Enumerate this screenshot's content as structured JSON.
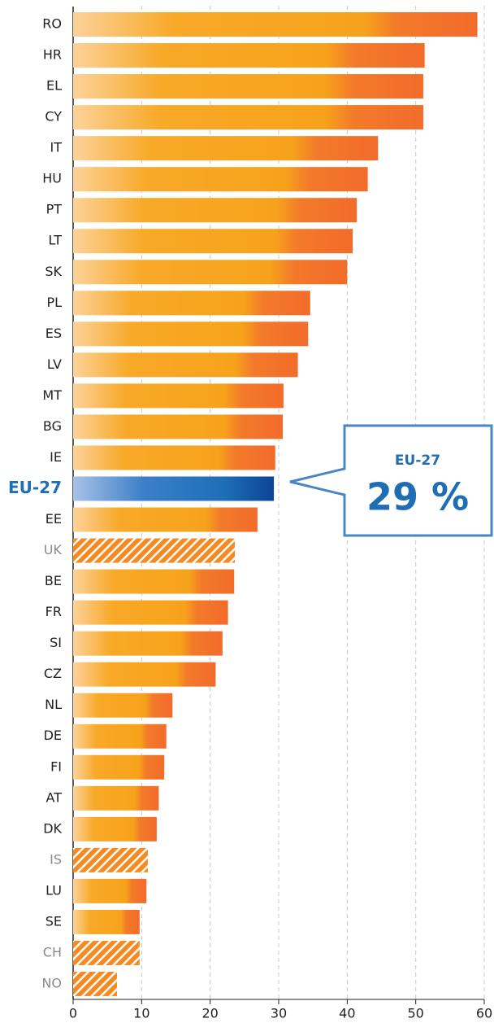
{
  "chart_data": {
    "type": "bar",
    "orientation": "horizontal",
    "categories": [
      "RO",
      "HR",
      "EL",
      "CY",
      "IT",
      "HU",
      "PT",
      "LT",
      "SK",
      "PL",
      "ES",
      "LV",
      "MT",
      "BG",
      "IE",
      "EU-27",
      "EE",
      "UK",
      "BE",
      "FR",
      "SI",
      "CZ",
      "NL",
      "DE",
      "FI",
      "AT",
      "DK",
      "IS",
      "LU",
      "SE",
      "CH",
      "NO"
    ],
    "values": [
      59,
      51.3,
      51.1,
      51.1,
      44.5,
      43,
      41.4,
      40.8,
      40,
      34.6,
      34.3,
      32.8,
      30.7,
      30.6,
      29.5,
      29.3,
      26.9,
      23.6,
      23.5,
      22.6,
      21.8,
      20.8,
      14.5,
      13.6,
      13.3,
      12.5,
      12.2,
      10.9,
      10.7,
      9.7,
      9.7,
      6.4
    ],
    "styles": [
      "solid",
      "solid",
      "solid",
      "solid",
      "solid",
      "solid",
      "solid",
      "solid",
      "solid",
      "solid",
      "solid",
      "solid",
      "solid",
      "solid",
      "solid",
      "highlight",
      "solid",
      "hatched",
      "solid",
      "solid",
      "solid",
      "solid",
      "solid",
      "solid",
      "solid",
      "solid",
      "solid",
      "hatched",
      "solid",
      "solid",
      "hatched",
      "hatched"
    ],
    "color": "#f7a21b",
    "highlight_color": "#1d6fb8",
    "callout": {
      "title": "EU-27",
      "text": "29 %"
    },
    "xlim": [
      0,
      60
    ],
    "xticks": [
      0,
      10,
      20,
      30,
      40,
      50,
      60
    ],
    "grid": true
  }
}
